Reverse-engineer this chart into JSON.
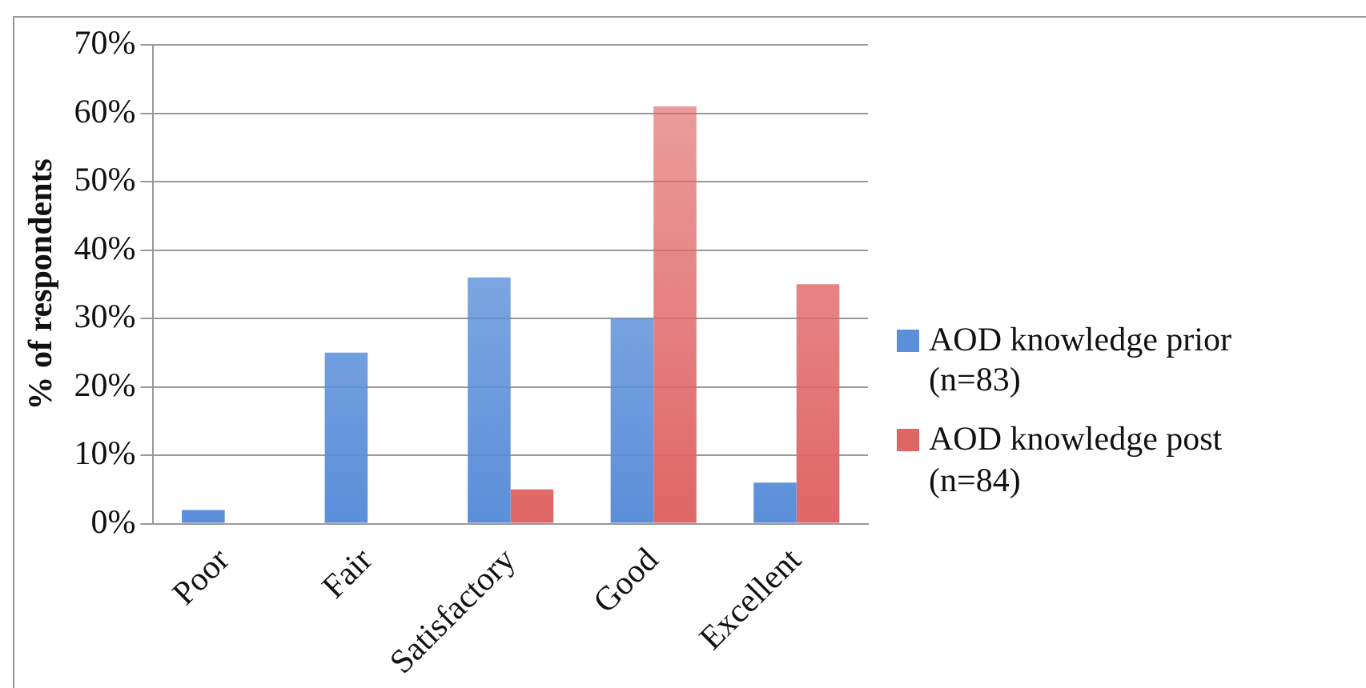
{
  "chart_data": {
    "type": "bar",
    "ylabel": "% of respondents",
    "categories": [
      "Poor",
      "Fair",
      "Satisfactory",
      "Good",
      "Excellent"
    ],
    "series": [
      {
        "name": "AOD knowledge prior (n=83)",
        "color": "#5b8fd9",
        "values": [
          2,
          25,
          36,
          30,
          6
        ]
      },
      {
        "name": "AOD knowledge post (n=84)",
        "color": "#e06666",
        "values": [
          0,
          0,
          5,
          61,
          35
        ]
      }
    ],
    "ylim": [
      0,
      70
    ],
    "yticks": [
      {
        "value": 0,
        "label": "0%"
      },
      {
        "value": 10,
        "label": "10%"
      },
      {
        "value": 20,
        "label": "20%"
      },
      {
        "value": 30,
        "label": "30%"
      },
      {
        "value": 40,
        "label": "40%"
      },
      {
        "value": 50,
        "label": "50%"
      },
      {
        "value": 60,
        "label": "60%"
      },
      {
        "value": 70,
        "label": "70%"
      }
    ],
    "grid": "y",
    "legend": "right"
  }
}
